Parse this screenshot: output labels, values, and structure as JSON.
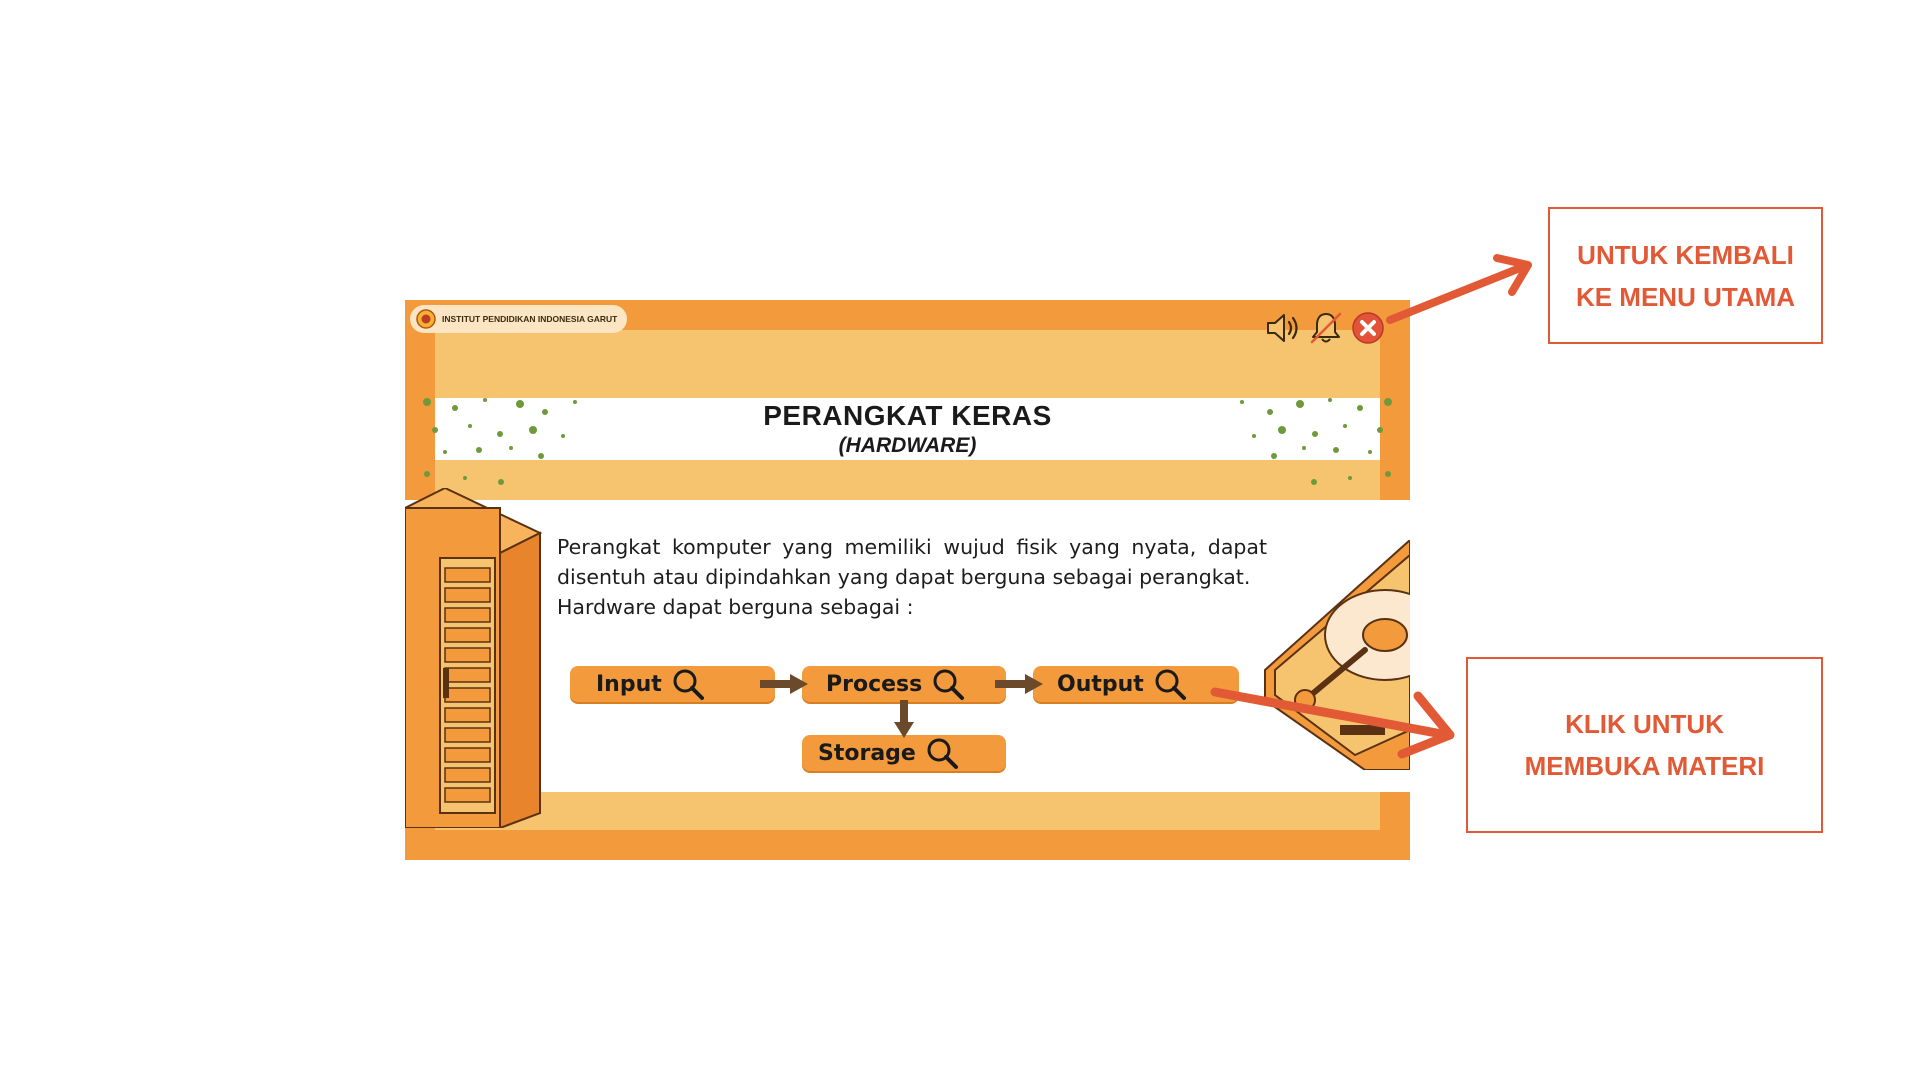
{
  "app": {
    "institution_badge": "INSTITUT PENDIDIKAN INDONESIA GARUT"
  },
  "toolbar": {
    "sound_icon": "speaker-icon",
    "bell_icon": "bell-muted-icon",
    "close_icon": "close-icon"
  },
  "slide": {
    "title": "PERANGKAT KERAS",
    "subtitle": "(HARDWARE)",
    "description": "Perangkat komputer yang memiliki wujud fisik yang nyata, dapat disentuh atau dipindahkan yang dapat berguna sebagai perangkat.",
    "description2": "Hardware dapat berguna sebagai :"
  },
  "flow": {
    "input": "Input",
    "process": "Process",
    "output": "Output",
    "storage": "Storage"
  },
  "callouts": {
    "menu": "UNTUK KEMBALI KE MENU UTAMA",
    "materi": "KLIK  UNTUK MEMBUKA MATERI"
  },
  "colors": {
    "frame": "#f39a3d",
    "inner": "#f6c46f",
    "accent_red": "#e25a35"
  }
}
